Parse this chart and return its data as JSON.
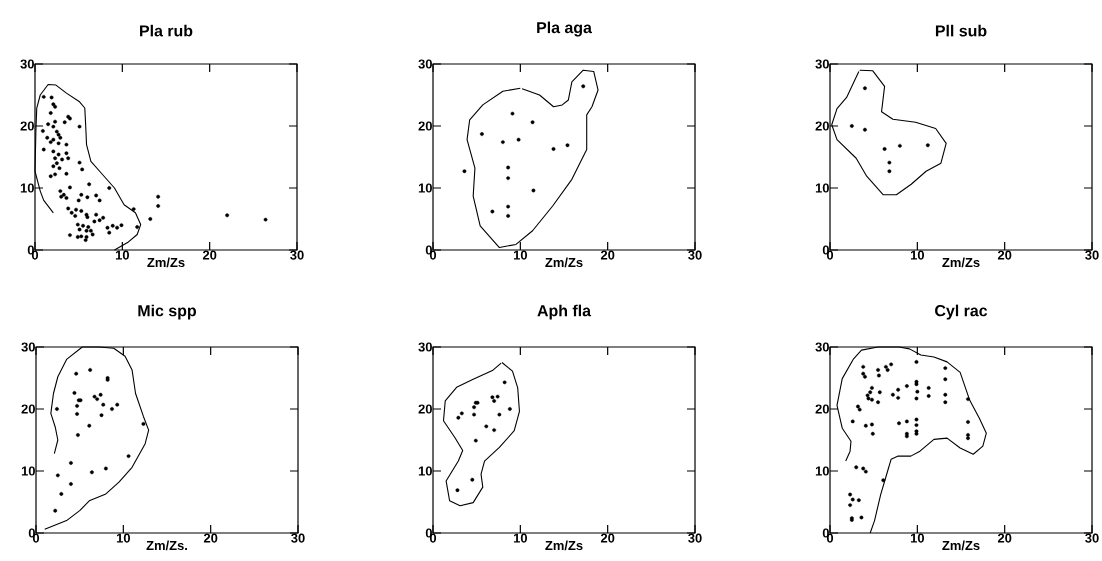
{
  "chart_data": [
    {
      "type": "scatter",
      "title": "Pla rub",
      "xlabel": "Zm/Zs",
      "xlim": [
        0,
        30
      ],
      "ylim": [
        0,
        30
      ],
      "xticks": [
        0,
        10,
        20,
        30
      ],
      "yticks": [
        0,
        10,
        20,
        30
      ],
      "marker": "circle",
      "series": [
        {
          "color": "#000000",
          "x": [
            1.0,
            1.9,
            2.1,
            2.3,
            1.8,
            3.8,
            4.0,
            1.5,
            2.3,
            2.1,
            5.1,
            2.5,
            2.7,
            1.4,
            2.1,
            2.9,
            1.8,
            2.7,
            3.6,
            1.0,
            2.1,
            2.7,
            3.6,
            2.3,
            3.1,
            3.8,
            2.5,
            5.1,
            2.1,
            2.8,
            5.4,
            3.6,
            1.8,
            2.3,
            4.0,
            6.2,
            2.9,
            3.3,
            3.0,
            3.6,
            5.3,
            6.0,
            7.0,
            7.4,
            5.0,
            8.5,
            3.8,
            4.7,
            5.3,
            4.2,
            4.6,
            5.9,
            7.0,
            7.8,
            7.4,
            6.8,
            6.0,
            4.9,
            5.5,
            6.1,
            5.1,
            5.9,
            6.4,
            6.6,
            5.3,
            5.9,
            5.8,
            4.0,
            4.9,
            8.3,
            8.5,
            8.9,
            9.4,
            9.9,
            11.3,
            11.7,
            13.2,
            14.1,
            14.1,
            22.0,
            26.4,
            0.9,
            3.4
          ],
          "values": [
            24.7,
            24.6,
            23.5,
            23.1,
            22.1,
            21.5,
            21.2,
            20.3,
            20.7,
            19.9,
            19.9,
            19.1,
            18.6,
            18.1,
            17.8,
            18.1,
            17.4,
            17.2,
            17.0,
            16.2,
            15.9,
            15.4,
            15.6,
            14.8,
            14.6,
            14.8,
            14.0,
            14.1,
            13.5,
            13.2,
            13.0,
            12.3,
            11.9,
            12.2,
            10.1,
            10.6,
            9.5,
            8.9,
            8.6,
            8.4,
            8.9,
            8.5,
            8.8,
            8.0,
            8.0,
            10.0,
            6.7,
            6.5,
            6.3,
            6.0,
            5.5,
            5.7,
            5.7,
            5.2,
            4.8,
            4.6,
            5.3,
            4.1,
            3.9,
            3.7,
            3.3,
            3.1,
            3.1,
            2.5,
            2.2,
            2.1,
            1.6,
            2.4,
            2.1,
            3.6,
            2.8,
            3.9,
            3.6,
            4.0,
            6.6,
            3.7,
            5.0,
            8.6,
            7.1,
            5.6,
            4.9,
            19.2,
            20.6
          ]
        },
        {
          "type": "line",
          "marker": "none",
          "color": "#000000",
          "x": [
            2.1,
            1.0,
            0.6,
            0.0,
            0.1,
            0.2,
            0.6,
            1.5,
            2.4,
            3.6,
            5.1,
            5.7,
            5.8,
            5.9,
            6.4,
            7.4,
            9.1,
            10.2,
            11.5,
            12.1,
            11.7,
            10.6,
            9.1
          ],
          "values": [
            6.0,
            8.0,
            9.5,
            12.7,
            19.1,
            22.9,
            25.0,
            26.7,
            26.6,
            25.3,
            23.9,
            22.9,
            20.2,
            17.0,
            14.3,
            12.7,
            10.0,
            7.3,
            6.0,
            4.1,
            2.5,
            1.2,
            0
          ]
        }
      ]
    },
    {
      "type": "scatter",
      "title": "Pla aga",
      "xlabel": "Zm/Zs",
      "xlim": [
        0,
        30
      ],
      "ylim": [
        0,
        30
      ],
      "xticks": [
        0,
        10,
        20,
        30
      ],
      "yticks": [
        0,
        10,
        20,
        30
      ],
      "marker": "circle",
      "series": [
        {
          "color": "#000000",
          "x": [
            9.1,
            11.4,
            5.6,
            8.0,
            9.8,
            13.8,
            15.4,
            8.6,
            8.6,
            11.5,
            6.8,
            8.6,
            8.6,
            17.2,
            3.6
          ],
          "values": [
            22.0,
            20.6,
            18.7,
            17.4,
            17.8,
            16.3,
            16.9,
            13.3,
            11.6,
            9.6,
            6.2,
            7.0,
            5.5,
            26.4,
            12.7
          ]
        },
        {
          "type": "line",
          "marker": "none",
          "color": "#000000",
          "x": [
            10.0,
            8.0,
            5.7,
            4.2,
            3.9,
            4.8,
            4.6,
            5.4,
            7.6,
            9.5,
            11.4,
            13.7,
            15.9,
            17.6,
            17.6,
            18.2,
            18.9,
            18.4,
            17.2,
            15.9,
            15.5,
            14.8,
            13.8,
            12.2,
            10.2
          ],
          "values": [
            26.1,
            25.6,
            23.4,
            21.0,
            17.8,
            13.2,
            8.7,
            3.9,
            0.4,
            0.9,
            3.1,
            7.1,
            11.4,
            16.2,
            21.8,
            23.1,
            25.8,
            28.8,
            29.0,
            27.1,
            24.2,
            23.4,
            23.1,
            25.0,
            26.0
          ]
        }
      ]
    },
    {
      "type": "scatter",
      "title": "Pll sub",
      "xlabel": "Zm/Zs",
      "xlim": [
        0,
        30
      ],
      "ylim": [
        0,
        30
      ],
      "xticks": [
        0,
        10,
        20,
        30
      ],
      "yticks": [
        0,
        10,
        20,
        30
      ],
      "marker": "circle",
      "series": [
        {
          "color": "#000000",
          "x": [
            4.0,
            2.5,
            4.0,
            6.25,
            8.0,
            11.2,
            6.8,
            6.8
          ],
          "values": [
            26.1,
            20.0,
            19.4,
            16.3,
            16.8,
            16.9,
            14.1,
            12.7
          ]
        },
        {
          "type": "line",
          "marker": "none",
          "color": "#000000",
          "x": [
            3.4,
            4.9,
            6.25,
            5.9,
            7.2,
            9.8,
            12.1,
            13.3,
            12.7,
            11.0,
            9.3,
            7.6,
            6.1,
            4.2,
            3.0,
            0.8,
            0.2,
            0.8,
            1.9,
            3.3
          ],
          "values": [
            29.0,
            28.9,
            26.4,
            22.3,
            21.1,
            20.6,
            19.6,
            17.2,
            14.0,
            12.7,
            10.6,
            8.9,
            8.9,
            11.9,
            14.8,
            17.8,
            20.2,
            22.8,
            24.6,
            28.8
          ]
        }
      ]
    },
    {
      "type": "scatter",
      "title": "Mic spp",
      "xlabel": "Zm/Zs.",
      "xlim": [
        0,
        30
      ],
      "ylim": [
        0,
        30
      ],
      "xticks": [
        0,
        10,
        20,
        30
      ],
      "yticks": [
        0,
        10,
        20,
        30
      ],
      "marker": "circle",
      "series": [
        {
          "color": "#000000",
          "x": [
            4.6,
            6.2,
            8.2,
            8.2,
            4.4,
            4.9,
            5.1,
            4.7,
            4.7,
            6.7,
            7.0,
            7.4,
            7.7,
            8.7,
            9.3,
            2.4,
            7.5,
            6.1,
            4.8,
            12.3,
            10.6,
            4.0,
            8.0,
            6.4,
            2.5,
            4.0,
            2.9,
            2.2
          ],
          "values": [
            25.7,
            26.3,
            25.0,
            24.7,
            22.6,
            21.4,
            21.4,
            20.5,
            19.2,
            22.0,
            21.6,
            22.3,
            20.7,
            20.0,
            20.7,
            20.0,
            19.0,
            17.3,
            15.8,
            17.6,
            12.4,
            11.3,
            10.4,
            9.8,
            9.3,
            7.9,
            6.3,
            3.6
          ]
        },
        {
          "type": "line",
          "marker": "none",
          "color": "#000000",
          "x": [
            1.0,
            3.5,
            5.0,
            6.1,
            8.0,
            9.5,
            11.0,
            12.5,
            12.9,
            12.3,
            11.4,
            11.0,
            10.2,
            8.9,
            7.2,
            5.3,
            3.5,
            2.5,
            2.0,
            1.7,
            2.2,
            2.5,
            2.1
          ],
          "values": [
            0.6,
            2.0,
            3.6,
            5.2,
            6.3,
            8.2,
            10.6,
            14.4,
            16.6,
            18.8,
            22.5,
            26.3,
            28.5,
            29.8,
            30.0,
            30.0,
            28.0,
            25.2,
            22.5,
            19.3,
            17.1,
            15.0,
            12.8
          ]
        }
      ]
    },
    {
      "type": "scatter",
      "title": "Aph fla",
      "xlabel": "Zm/Zs",
      "xlim": [
        0,
        30
      ],
      "ylim": [
        0,
        30
      ],
      "xticks": [
        0,
        10,
        20,
        30
      ],
      "yticks": [
        0,
        10,
        20,
        30
      ],
      "marker": "circle",
      "series": [
        {
          "color": "#000000",
          "x": [
            8.2,
            4.9,
            5.1,
            4.7,
            4.7,
            6.8,
            7.4,
            7.0,
            8.8,
            7.6,
            3.3,
            2.9,
            6.1,
            7.0,
            4.9,
            4.5,
            2.8
          ],
          "values": [
            24.3,
            21.0,
            21.0,
            20.3,
            19.1,
            21.9,
            22.0,
            21.3,
            20.0,
            19.1,
            19.3,
            18.6,
            17.2,
            16.6,
            14.9,
            8.6,
            6.9
          ]
        },
        {
          "type": "line",
          "marker": "none",
          "color": "#000000",
          "x": [
            7.9,
            9.1,
            9.7,
            9.9,
            9.3,
            7.6,
            5.9,
            5.5,
            5.7,
            4.6,
            3.1,
            1.9,
            1.5,
            2.9,
            3.4,
            2.5,
            1.2,
            1.4,
            2.7,
            4.6,
            6.8,
            7.8
          ],
          "values": [
            27.5,
            26.1,
            23.4,
            19.6,
            16.5,
            13.8,
            11.6,
            9.5,
            7.4,
            4.9,
            4.4,
            5.2,
            8.4,
            11.6,
            13.3,
            15.4,
            18.1,
            21.3,
            23.5,
            24.8,
            26.2,
            27.4
          ]
        }
      ]
    },
    {
      "type": "scatter",
      "title": "Cyl rac",
      "xlabel": "Zm/Zs",
      "xlim": [
        0,
        30
      ],
      "ylim": [
        0,
        30
      ],
      "xticks": [
        0,
        10,
        20,
        30
      ],
      "yticks": [
        0,
        10,
        20,
        30
      ],
      "marker": "circle",
      "series": [
        {
          "color": "#000000",
          "x": [
            3.8,
            3.8,
            4.0,
            5.5,
            5.6,
            6.4,
            6.6,
            7.0,
            9.9,
            13.2,
            13.2,
            4.8,
            4.6,
            4.3,
            4.4,
            4.8,
            5.5,
            5.7,
            7.2,
            7.8,
            7.8,
            8.8,
            9.9,
            9.9,
            10.0,
            9.9,
            11.3,
            11.3,
            13.2,
            13.2,
            15.8,
            3.2,
            3.4,
            2.6,
            4.1,
            4.8,
            4.9,
            7.9,
            8.8,
            8.8,
            8.8,
            9.9,
            9.9,
            9.9,
            9.9,
            15.8,
            15.8,
            15.8,
            3.0,
            3.8,
            4.1,
            6.1,
            2.3,
            2.6,
            3.3,
            2.3,
            2.5,
            3.6,
            2.5
          ],
          "values": [
            26.8,
            25.7,
            25.2,
            26.3,
            25.4,
            26.8,
            26.3,
            27.2,
            27.6,
            26.6,
            24.8,
            23.4,
            22.7,
            22.2,
            21.7,
            21.5,
            21.1,
            22.7,
            22.3,
            23.1,
            21.8,
            23.7,
            24.4,
            24.0,
            22.8,
            21.7,
            23.4,
            22.1,
            22.3,
            21.1,
            21.6,
            20.4,
            19.9,
            18.0,
            17.3,
            17.5,
            16.0,
            17.7,
            18.0,
            16.0,
            15.6,
            18.3,
            17.4,
            16.4,
            16.0,
            17.9,
            15.8,
            15.3,
            10.6,
            10.4,
            9.9,
            8.5,
            6.2,
            5.4,
            5.3,
            4.5,
            2.4,
            2.5,
            2.1
          ]
        },
        {
          "type": "line",
          "marker": "none",
          "color": "#000000",
          "x": [
            4.6,
            5.1,
            5.8,
            6.6,
            7.0,
            7.8,
            9.25,
            10.3,
            11.9,
            13.4,
            14.9,
            16.4,
            17.5,
            17.9,
            17.1,
            16.0,
            14.9,
            13.4,
            11.9,
            10.4,
            9.1,
            7.9,
            5.5,
            3.6,
            2.7,
            1.4,
            0.8,
            1.4,
            2.4,
            2.3,
            1.8
          ],
          "values": [
            0,
            2.0,
            6.2,
            10.0,
            11.9,
            12.4,
            12.4,
            13.2,
            15.1,
            15.3,
            13.7,
            12.7,
            14.0,
            16.1,
            18.5,
            21.4,
            25.9,
            27.6,
            28.4,
            28.7,
            29.7,
            30.0,
            30.0,
            29.5,
            28.1,
            24.9,
            20.6,
            16.9,
            14.8,
            13.2,
            11.6
          ]
        }
      ]
    }
  ]
}
